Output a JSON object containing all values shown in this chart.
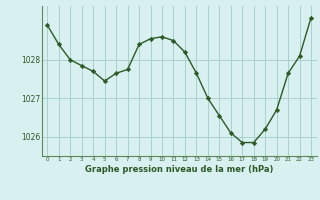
{
  "x": [
    0,
    1,
    2,
    3,
    4,
    5,
    6,
    7,
    8,
    9,
    10,
    11,
    12,
    13,
    14,
    15,
    16,
    17,
    18,
    19,
    20,
    21,
    22,
    23
  ],
  "y": [
    1028.9,
    1028.4,
    1028.0,
    1027.85,
    1027.7,
    1027.45,
    1027.65,
    1027.75,
    1028.4,
    1028.55,
    1028.6,
    1028.5,
    1028.2,
    1027.65,
    1027.0,
    1026.55,
    1026.1,
    1025.85,
    1025.85,
    1026.2,
    1026.7,
    1027.65,
    1028.1,
    1029.1
  ],
  "line_color": "#2d5a27",
  "marker": "D",
  "marker_size": 2.2,
  "bg_color": "#d8f0f0",
  "grid_color": "#aacfcf",
  "xlabel": "Graphe pression niveau de la mer (hPa)",
  "xlabel_color": "#2d5a27",
  "tick_label_color": "#2d5a27",
  "ylim": [
    1025.5,
    1029.4
  ],
  "yticks": [
    1026,
    1027,
    1028
  ],
  "xtick_labels": [
    "0",
    "1",
    "2",
    "3",
    "4",
    "5",
    "6",
    "7",
    "8",
    "9",
    "10",
    "11",
    "12",
    "13",
    "14",
    "15",
    "16",
    "17",
    "18",
    "19",
    "20",
    "21",
    "22",
    "23"
  ],
  "line_width": 1.0,
  "marker_edge_color": "#2d5a27",
  "marker_face_color": "#2d5a27"
}
